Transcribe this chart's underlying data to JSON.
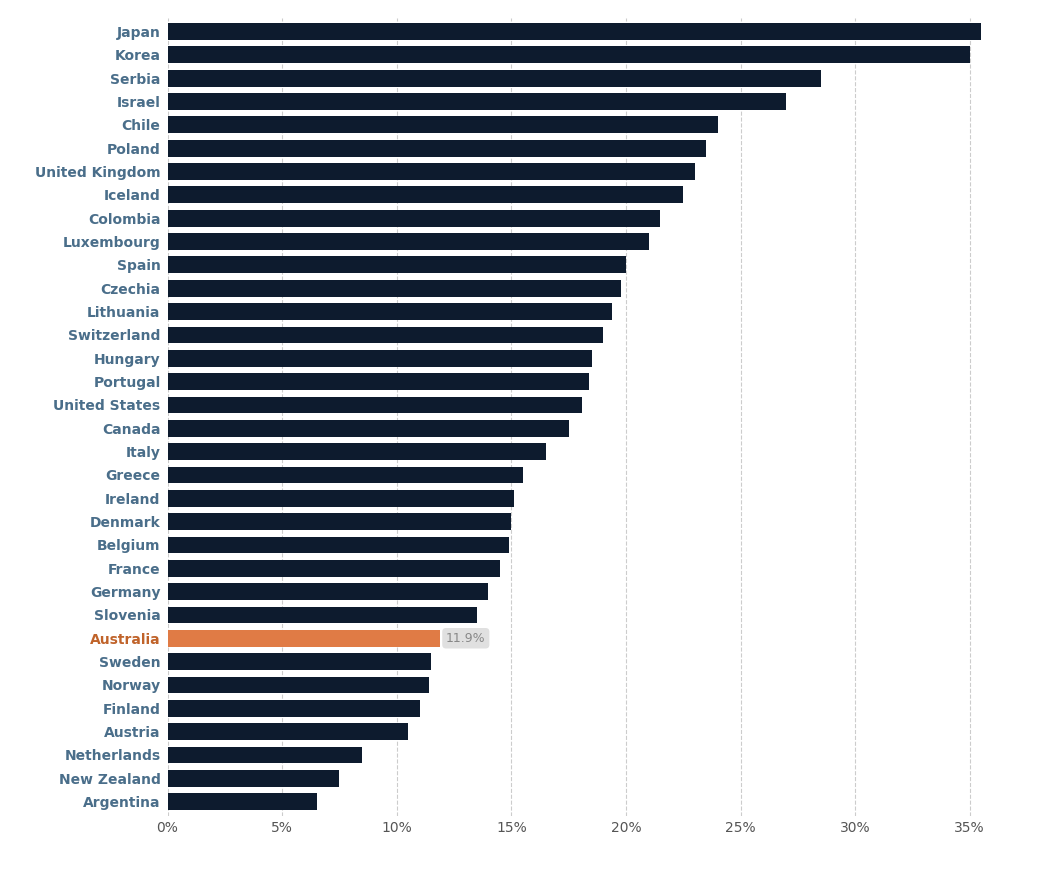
{
  "countries": [
    "Japan",
    "Korea",
    "Serbia",
    "Israel",
    "Chile",
    "Poland",
    "United Kingdom",
    "Iceland",
    "Colombia",
    "Luxembourg",
    "Spain",
    "Czechia",
    "Lithuania",
    "Switzerland",
    "Hungary",
    "Portugal",
    "United States",
    "Canada",
    "Italy",
    "Greece",
    "Ireland",
    "Denmark",
    "Belgium",
    "France",
    "Germany",
    "Slovenia",
    "Australia",
    "Sweden",
    "Norway",
    "Finland",
    "Austria",
    "Netherlands",
    "New Zealand",
    "Argentina"
  ],
  "values": [
    35.5,
    35.0,
    28.5,
    27.0,
    24.0,
    23.5,
    23.0,
    22.5,
    21.5,
    21.0,
    20.0,
    19.8,
    19.4,
    19.0,
    18.5,
    18.4,
    18.1,
    17.5,
    16.5,
    15.5,
    15.1,
    15.0,
    14.9,
    14.5,
    14.0,
    13.5,
    11.9,
    11.5,
    11.4,
    11.0,
    10.5,
    8.5,
    7.5,
    6.5
  ],
  "highlight_country": "Australia",
  "highlight_value": 11.9,
  "highlight_color": "#E07B45",
  "default_color": "#0D1B2E",
  "background_color": "#ffffff",
  "label_color": "#4a6e8a",
  "highlight_label_color": "#c0632a",
  "annotation_text": "11.9%",
  "annotation_bg": "#e0e0e0",
  "annotation_text_color": "#888888",
  "xlim": [
    0,
    37
  ],
  "xtick_values": [
    0,
    5,
    10,
    15,
    20,
    25,
    30,
    35
  ],
  "xtick_labels": [
    "0%",
    "5%",
    "10%",
    "15%",
    "20%",
    "25%",
    "30%",
    "35%"
  ],
  "grid_color": "#cccccc",
  "bar_height": 0.72,
  "figsize": [
    10.47,
    8.77
  ],
  "dpi": 100
}
